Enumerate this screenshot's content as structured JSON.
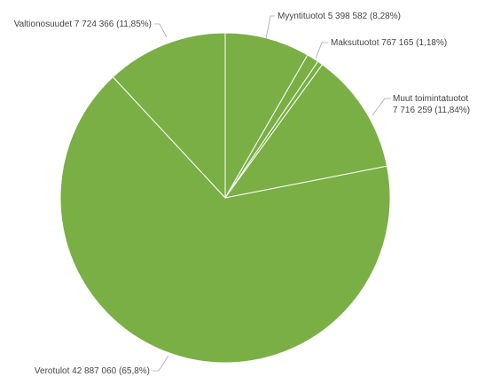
{
  "chart_data": {
    "type": "pie",
    "title": "",
    "color": "#7aaf45",
    "slices": [
      {
        "name": "Myyntituotot",
        "value": 5398582,
        "value_text": "5 398 582",
        "percent_text": "8,28%"
      },
      {
        "name": "Maksutuotot",
        "value": 767165,
        "value_text": "767 165",
        "percent_text": "1,18%"
      },
      {
        "name": "",
        "value": 330000,
        "value_text": "",
        "percent_text": ""
      },
      {
        "name": "Muut toimintatuotot",
        "value": 7716259,
        "value_text": "7 716 259",
        "percent_text": "11,84%"
      },
      {
        "name": "Verotulot",
        "value": 42887060,
        "value_text": "42 887 060",
        "percent_text": "65,8%"
      },
      {
        "name": "Valtionosuudet",
        "value": 7724366,
        "value_text": "7 724 366",
        "percent_text": "11,85%"
      }
    ],
    "labels": [
      {
        "line1": "Myyntituotot 5 398 582 (8,28%)",
        "line2": ""
      },
      {
        "line1": "Maksutuotot 767 165 (1,18%)",
        "line2": ""
      },
      {
        "line1": "Muut toimintatuotot",
        "line2": "7 716 259 (11,84%)"
      },
      {
        "line1": "Verotulot 42 887 060 (65,8%)",
        "line2": ""
      },
      {
        "line1": "Valtionosuudet 7 724 366 (11,85%)",
        "line2": ""
      }
    ]
  }
}
